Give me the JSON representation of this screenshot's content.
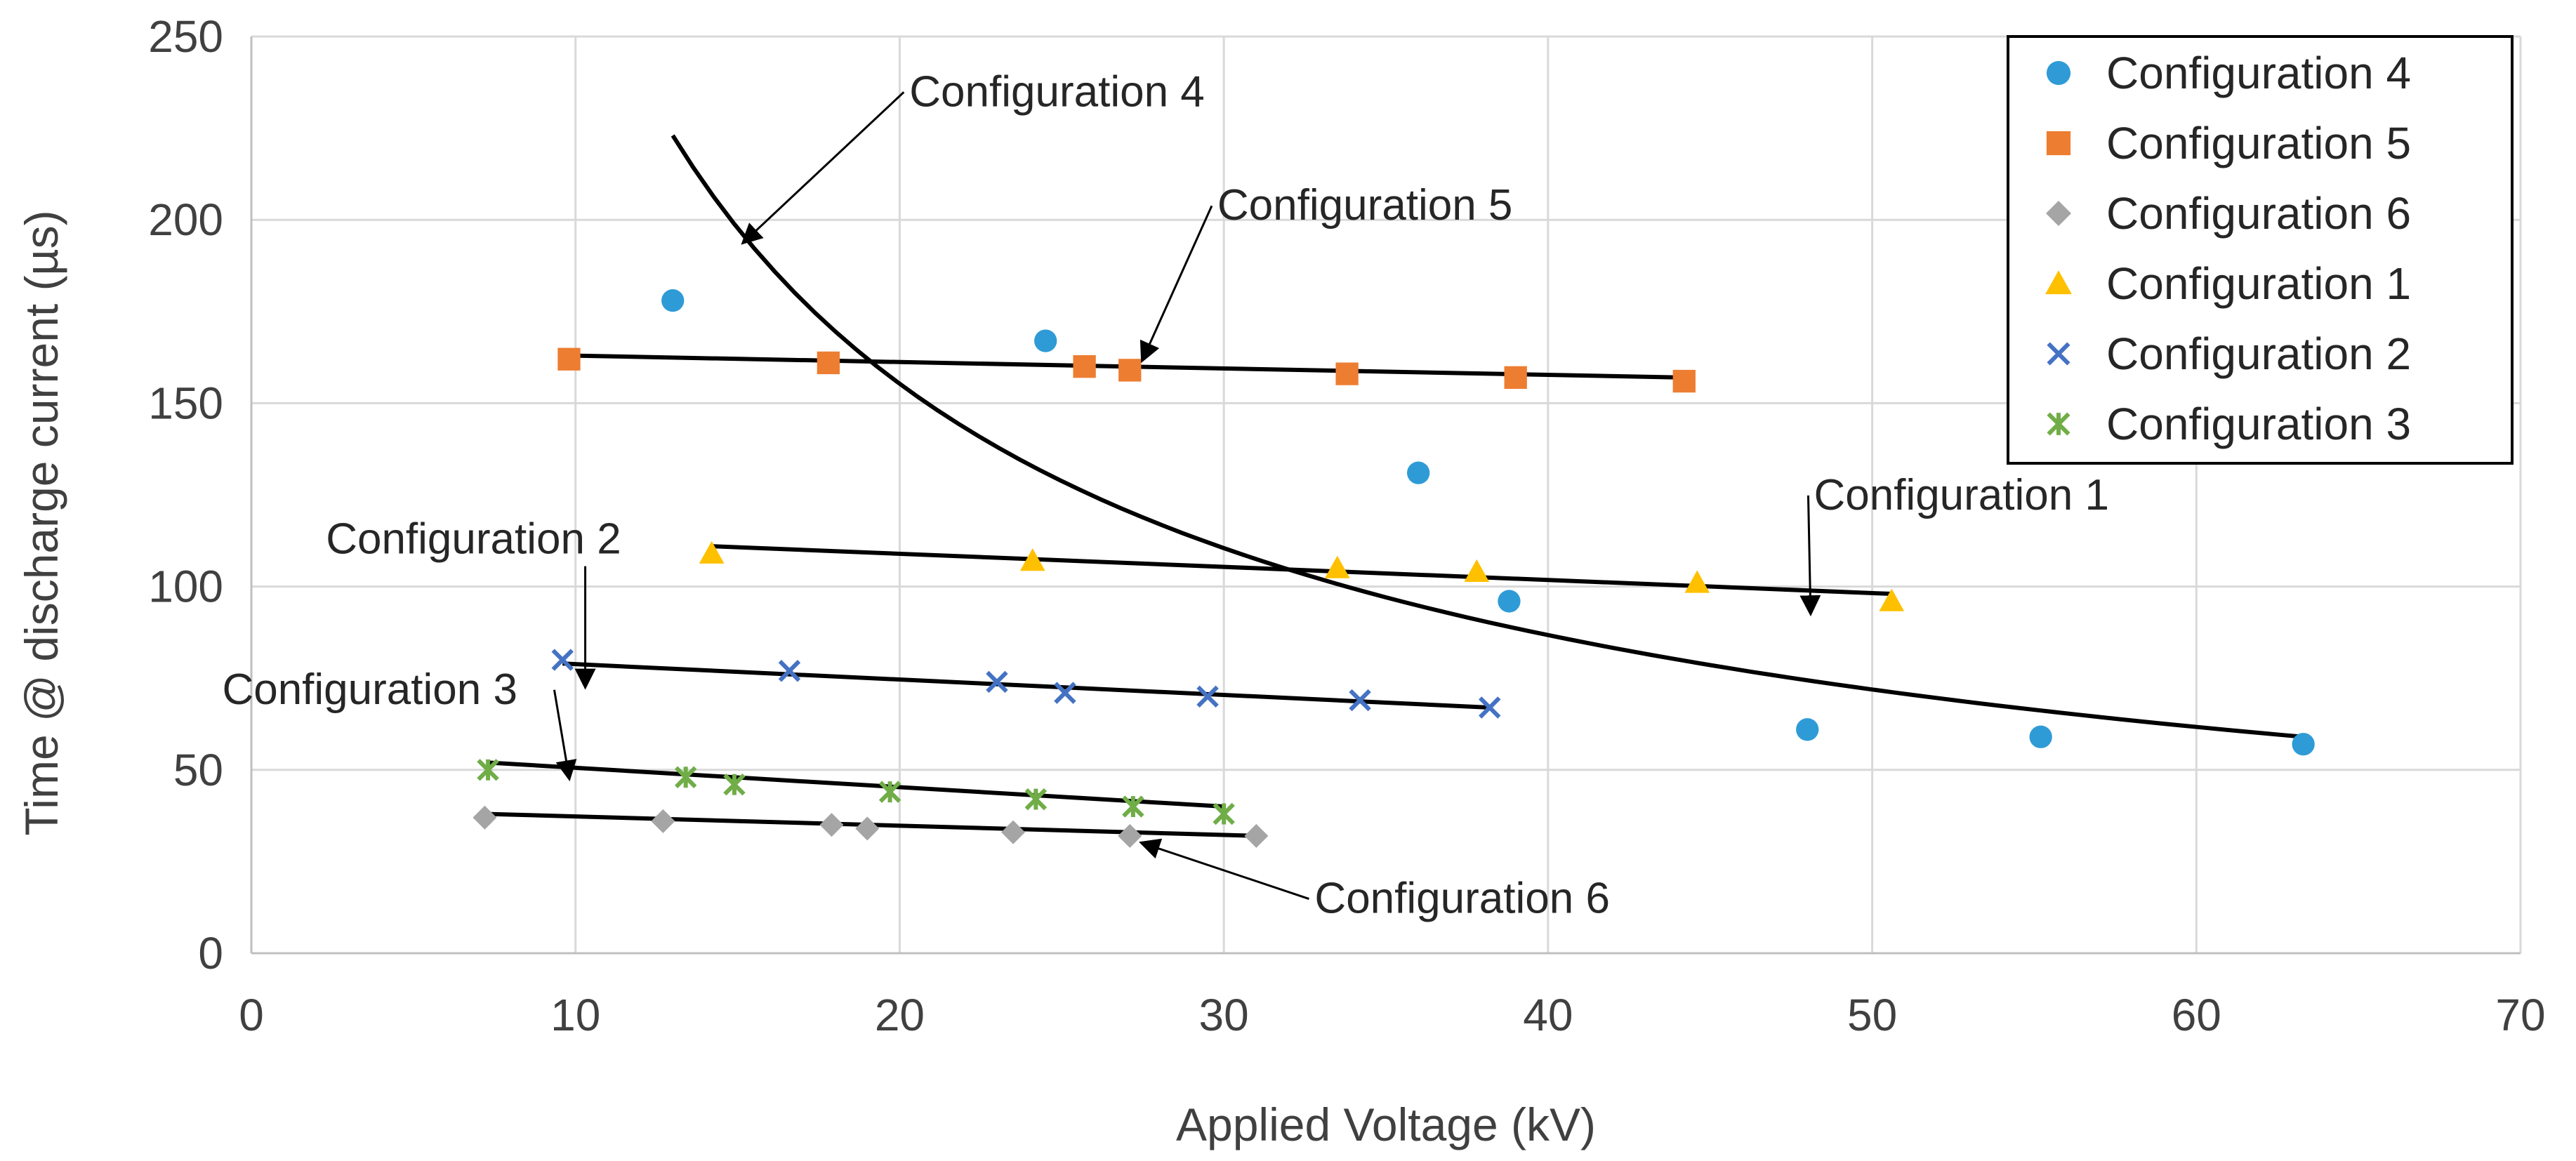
{
  "chart_data": {
    "type": "scatter",
    "xlabel": "Applied Voltage (kV)",
    "ylabel": "Time @ discharge current (µs)",
    "xlim": [
      0,
      70
    ],
    "ylim": [
      0,
      250
    ],
    "x_ticks": [
      "0",
      "10",
      "20",
      "30",
      "40",
      "50",
      "60",
      "70"
    ],
    "y_ticks": [
      "0",
      "50",
      "100",
      "150",
      "200",
      "250"
    ],
    "grid": true,
    "legend_position": "top-right",
    "series": [
      {
        "name": "Configuration 4",
        "marker": "circle",
        "color": "#2E9BD6",
        "points": [
          [
            13.0,
            178
          ],
          [
            24.5,
            167
          ],
          [
            36.0,
            131
          ],
          [
            38.8,
            96
          ],
          [
            48.0,
            61
          ],
          [
            55.2,
            59
          ],
          [
            63.3,
            57
          ]
        ],
        "trend": {
          "kind": "power",
          "x_from": 13,
          "x_to": 63.3,
          "y_from": 223,
          "y_to": 59
        }
      },
      {
        "name": "Configuration 5",
        "marker": "square",
        "color": "#ED7D31",
        "points": [
          [
            9.8,
            162
          ],
          [
            17.8,
            161
          ],
          [
            25.7,
            160
          ],
          [
            27.1,
            159
          ],
          [
            33.8,
            158
          ],
          [
            39.0,
            157
          ],
          [
            44.2,
            156
          ]
        ],
        "trend": {
          "kind": "linear",
          "x_from": 9.8,
          "x_to": 44.2,
          "y_from": 163,
          "y_to": 157
        }
      },
      {
        "name": "Configuration 6",
        "marker": "diamond",
        "color": "#A5A5A5",
        "points": [
          [
            7.2,
            37
          ],
          [
            12.7,
            36
          ],
          [
            17.9,
            35
          ],
          [
            19.0,
            34
          ],
          [
            23.5,
            33
          ],
          [
            27.1,
            32
          ],
          [
            31.0,
            32
          ]
        ],
        "trend": {
          "kind": "linear",
          "x_from": 7.2,
          "x_to": 31.0,
          "y_from": 38,
          "y_to": 32
        }
      },
      {
        "name": "Configuration 1",
        "marker": "triangle",
        "color": "#FFC000",
        "points": [
          [
            14.2,
            109
          ],
          [
            24.1,
            107
          ],
          [
            33.5,
            105
          ],
          [
            37.8,
            104
          ],
          [
            44.6,
            101
          ],
          [
            50.6,
            96
          ]
        ],
        "trend": {
          "kind": "linear",
          "x_from": 14.2,
          "x_to": 50.6,
          "y_from": 111,
          "y_to": 98
        }
      },
      {
        "name": "Configuration 2",
        "marker": "x",
        "color": "#4472C4",
        "points": [
          [
            9.6,
            80
          ],
          [
            16.6,
            77
          ],
          [
            23.0,
            74
          ],
          [
            25.1,
            71
          ],
          [
            29.5,
            70
          ],
          [
            34.2,
            69
          ],
          [
            38.2,
            67
          ]
        ],
        "trend": {
          "kind": "linear",
          "x_from": 9.6,
          "x_to": 38.2,
          "y_from": 79,
          "y_to": 67
        }
      },
      {
        "name": "Configuration 3",
        "marker": "asterisk",
        "color": "#70AD47",
        "points": [
          [
            7.3,
            50
          ],
          [
            13.4,
            48
          ],
          [
            14.9,
            46
          ],
          [
            19.7,
            44
          ],
          [
            24.2,
            42
          ],
          [
            27.2,
            40
          ],
          [
            30.0,
            38
          ]
        ],
        "trend": {
          "kind": "linear",
          "x_from": 7.3,
          "x_to": 30.0,
          "y_from": 52,
          "y_to": 40
        }
      }
    ],
    "annotations": [
      {
        "text": "Configuration 4",
        "series": "Configuration 4",
        "label_at": [
          20.3,
          231
        ],
        "arrow_to": [
          15.2,
          194
        ]
      },
      {
        "text": "Configuration 5",
        "series": "Configuration 5",
        "label_at": [
          29.8,
          200
        ],
        "arrow_to": [
          27.5,
          162
        ]
      },
      {
        "text": "Configuration 1",
        "series": "Configuration 1",
        "label_at": [
          48.2,
          121
        ],
        "arrow_to": [
          48.1,
          93
        ]
      },
      {
        "text": "Configuration 2",
        "series": "Configuration 2",
        "label_at": [
          2.3,
          109
        ],
        "arrow_to": [
          10.3,
          73
        ]
      },
      {
        "text": "Configuration 3",
        "series": "Configuration 3",
        "label_at": [
          -0.9,
          68
        ],
        "arrow_to": [
          9.8,
          48
        ]
      },
      {
        "text": "Configuration 6",
        "series": "Configuration 6",
        "label_at": [
          32.8,
          11
        ],
        "arrow_to": [
          27.5,
          30
        ]
      }
    ]
  }
}
